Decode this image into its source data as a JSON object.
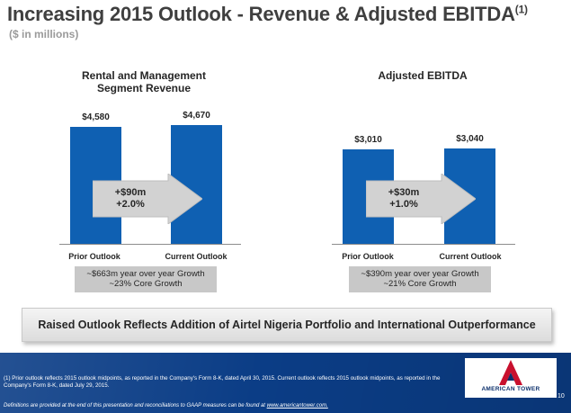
{
  "header": {
    "title": "Increasing 2015 Outlook - Revenue & Adjusted EBITDA",
    "title_sup": "(1)",
    "subtitle": "($ in millions)"
  },
  "chart_data": [
    {
      "type": "bar",
      "title_line1": "Rental and Management",
      "title_line2": "Segment Revenue",
      "categories": [
        "Prior Outlook",
        "Current Outlook"
      ],
      "values": [
        4580,
        4670
      ],
      "labels": [
        "$4,580",
        "$4,670"
      ],
      "change_line1": "+$90m",
      "change_line2": "+2.0%",
      "growth_line1": "~$663m year over year Growth",
      "growth_line2": "~23% Core Growth",
      "ylim": [
        0,
        5000
      ],
      "color": "#0f60b2"
    },
    {
      "type": "bar",
      "title_line1": "Adjusted EBITDA",
      "title_line2": "",
      "categories": [
        "Prior Outlook",
        "Current Outlook"
      ],
      "values": [
        3010,
        3040
      ],
      "labels": [
        "$3,010",
        "$3,040"
      ],
      "change_line1": "+$30m",
      "change_line2": "+1.0%",
      "growth_line1": "~$390m year over year Growth",
      "growth_line2": "~21% Core Growth",
      "ylim": [
        0,
        5000
      ],
      "color": "#0f60b2"
    }
  ],
  "banner": "Raised Outlook Reflects Addition of Airtel Nigeria Portfolio and International Outperformance",
  "footer": {
    "footnote": "(1) Prior outlook reflects 2015 outlook midpoints, as reported in the Company's Form 8-K, dated April 30, 2015. Current outlook reflects 2015 outlook midpoints, as reported in the Company's Form 8-K, dated July 29, 2015.",
    "definitions": "Definitions are provided at the end of this presentation and reconciliations to GAAP measures can be found at ",
    "definitions_link": "www.americantower.com.",
    "logo_text": "AMERICAN TOWER",
    "page_number": "10"
  },
  "colors": {
    "bar": "#0f60b2",
    "footer": "#0b3d86",
    "logo_red": "#c8102e",
    "logo_navy": "#0b2f6b"
  }
}
